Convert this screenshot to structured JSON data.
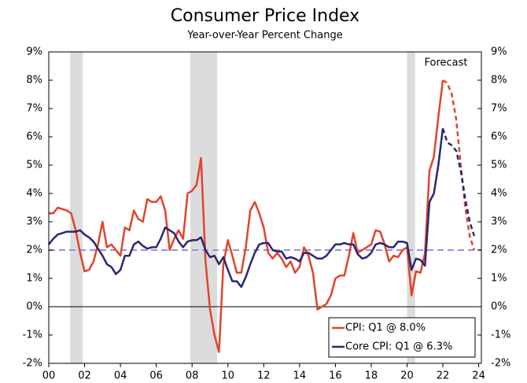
{
  "chart_data": {
    "type": "line",
    "title": "Consumer Price Index",
    "subtitle": "Year-over-Year Percent Change",
    "annotation": "Forecast",
    "forecast_start": 2022,
    "x": [
      2000,
      2000.25,
      2000.5,
      2000.75,
      2001,
      2001.25,
      2001.5,
      2001.75,
      2002,
      2002.25,
      2002.5,
      2002.75,
      2003,
      2003.25,
      2003.5,
      2003.75,
      2004,
      2004.25,
      2004.5,
      2004.75,
      2005,
      2005.25,
      2005.5,
      2005.75,
      2006,
      2006.25,
      2006.5,
      2006.75,
      2007,
      2007.25,
      2007.5,
      2007.75,
      2008,
      2008.25,
      2008.5,
      2008.75,
      2009,
      2009.25,
      2009.5,
      2009.75,
      2010,
      2010.25,
      2010.5,
      2010.75,
      2011,
      2011.25,
      2011.5,
      2011.75,
      2012,
      2012.25,
      2012.5,
      2012.75,
      2013,
      2013.25,
      2013.5,
      2013.75,
      2014,
      2014.25,
      2014.5,
      2014.75,
      2015,
      2015.25,
      2015.5,
      2015.75,
      2016,
      2016.25,
      2016.5,
      2016.75,
      2017,
      2017.25,
      2017.5,
      2017.75,
      2018,
      2018.25,
      2018.5,
      2018.75,
      2019,
      2019.25,
      2019.5,
      2019.75,
      2020,
      2020.25,
      2020.5,
      2020.75,
      2021,
      2021.25,
      2021.5,
      2021.75,
      2022,
      2022.25,
      2022.5,
      2022.75,
      2023,
      2023.25,
      2023.5,
      2023.75
    ],
    "series": [
      {
        "name": "CPI: Q1 @ 8.0%",
        "color": "#e0452a",
        "values": [
          3.3,
          3.3,
          3.5,
          3.45,
          3.4,
          3.3,
          2.7,
          1.9,
          1.25,
          1.3,
          1.6,
          2.2,
          3.0,
          2.1,
          2.2,
          2.0,
          1.8,
          2.8,
          2.7,
          3.4,
          3.1,
          3.0,
          3.8,
          3.7,
          3.7,
          3.9,
          3.4,
          2.0,
          2.4,
          2.7,
          2.4,
          4.0,
          4.1,
          4.3,
          5.25,
          1.6,
          -0.1,
          -1.0,
          -1.6,
          1.5,
          2.35,
          1.8,
          1.2,
          1.2,
          2.1,
          3.4,
          3.7,
          3.3,
          2.8,
          1.9,
          1.7,
          1.9,
          1.7,
          1.4,
          1.6,
          1.2,
          1.4,
          2.1,
          1.8,
          1.2,
          -0.1,
          0.0,
          0.1,
          0.4,
          1.0,
          1.1,
          1.1,
          1.8,
          2.6,
          1.9,
          2.0,
          2.1,
          2.2,
          2.7,
          2.65,
          2.2,
          1.6,
          1.8,
          1.75,
          2.0,
          2.1,
          0.4,
          1.25,
          1.2,
          1.9,
          4.8,
          5.3,
          6.7,
          8.0,
          7.9,
          7.5,
          6.6,
          5.0,
          3.5,
          2.5,
          2.0
        ]
      },
      {
        "name": "Core CPI: Q1 @ 6.3%",
        "color": "#2a2870",
        "values": [
          2.2,
          2.4,
          2.55,
          2.6,
          2.65,
          2.65,
          2.65,
          2.7,
          2.55,
          2.45,
          2.3,
          2.05,
          1.8,
          1.5,
          1.4,
          1.15,
          1.3,
          1.8,
          1.8,
          2.2,
          2.3,
          2.15,
          2.05,
          2.1,
          2.1,
          2.4,
          2.8,
          2.7,
          2.6,
          2.3,
          2.1,
          2.3,
          2.35,
          2.35,
          2.45,
          2.0,
          1.75,
          1.8,
          1.5,
          1.75,
          1.3,
          0.9,
          0.9,
          0.7,
          1.05,
          1.5,
          1.9,
          2.2,
          2.25,
          2.25,
          2.0,
          1.95,
          1.95,
          1.7,
          1.75,
          1.7,
          1.6,
          1.9,
          1.9,
          1.8,
          1.7,
          1.7,
          1.8,
          2.0,
          2.2,
          2.2,
          2.25,
          2.2,
          2.2,
          1.85,
          1.7,
          1.75,
          1.9,
          2.2,
          2.25,
          2.2,
          2.1,
          2.1,
          2.3,
          2.3,
          2.25,
          1.3,
          1.7,
          1.65,
          1.45,
          3.7,
          4.0,
          5.0,
          6.3,
          5.8,
          5.7,
          5.5,
          4.8,
          3.8,
          3.0,
          2.5
        ]
      }
    ],
    "recessions": [
      [
        2001.2,
        2001.9
      ],
      [
        2007.9,
        2009.4
      ],
      [
        2020.0,
        2020.45
      ]
    ],
    "recession_color": "#dcdcdc",
    "target": 2,
    "target_color": "#9b8fe0",
    "xlim": [
      2000,
      2024.15
    ],
    "xticks": [
      {
        "value": 2000,
        "label": "00"
      },
      {
        "value": 2002,
        "label": "02"
      },
      {
        "value": 2004,
        "label": "04"
      },
      {
        "value": 2006,
        "label": "06"
      },
      {
        "value": 2008,
        "label": "08"
      },
      {
        "value": 2010,
        "label": "10"
      },
      {
        "value": 2012,
        "label": "12"
      },
      {
        "value": 2014,
        "label": "14"
      },
      {
        "value": 2016,
        "label": "16"
      },
      {
        "value": 2018,
        "label": "18"
      },
      {
        "value": 2020,
        "label": "20"
      },
      {
        "value": 2022,
        "label": "22"
      },
      {
        "value": 2024,
        "label": "24"
      }
    ],
    "ylim": [
      -2,
      9
    ],
    "yticks": [
      {
        "value": -2,
        "label": "-2%"
      },
      {
        "value": -1,
        "label": "-1%"
      },
      {
        "value": 0,
        "label": "0%"
      },
      {
        "value": 1,
        "label": "1%"
      },
      {
        "value": 2,
        "label": "2%"
      },
      {
        "value": 3,
        "label": "3%"
      },
      {
        "value": 4,
        "label": "4%"
      },
      {
        "value": 5,
        "label": "5%"
      },
      {
        "value": 6,
        "label": "6%"
      },
      {
        "value": 7,
        "label": "7%"
      },
      {
        "value": 8,
        "label": "8%"
      },
      {
        "value": 9,
        "label": "9%"
      }
    ],
    "y2lim": [
      -2,
      9
    ],
    "y2ticks": [
      {
        "value": -2,
        "label": "-2%"
      },
      {
        "value": -1,
        "label": "-1%"
      },
      {
        "value": 0,
        "label": "0%"
      },
      {
        "value": 1,
        "label": "1%"
      },
      {
        "value": 2,
        "label": "2%"
      },
      {
        "value": 3,
        "label": "3%"
      },
      {
        "value": 4,
        "label": "4%"
      },
      {
        "value": 5,
        "label": "5%"
      },
      {
        "value": 6,
        "label": "6%"
      },
      {
        "value": 7,
        "label": "7%"
      },
      {
        "value": 8,
        "label": "8%"
      },
      {
        "value": 9,
        "label": "9%"
      }
    ],
    "legend": "lower right"
  }
}
